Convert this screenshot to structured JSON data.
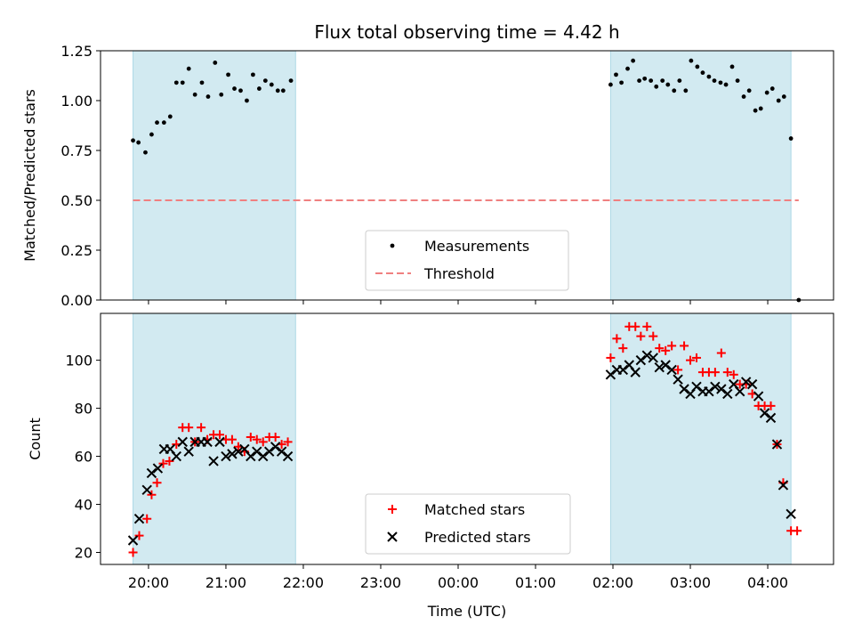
{
  "chart_data": {
    "type": "scatter",
    "title": "Flux total observing time = 4.42 h",
    "xlabel": "Time (UTC)",
    "x_unit": "hours since 00:00 UTC (previous evening negative)",
    "x_ticks": [
      -4,
      -3,
      -2,
      -1,
      0,
      1,
      2,
      3,
      4
    ],
    "x_tick_labels": [
      "20:00",
      "21:00",
      "22:00",
      "23:00",
      "00:00",
      "01:00",
      "02:00",
      "03:00",
      "04:00"
    ],
    "xlim": [
      -4.62,
      4.85
    ],
    "shaded_intervals": [
      [
        -4.2,
        -2.1
      ],
      [
        1.97,
        4.3
      ]
    ],
    "shade_color": "#add8e6",
    "panels": [
      {
        "ylabel": "Matched/Predicted stars",
        "ylim": [
          0,
          1.25
        ],
        "y_ticks": [
          0,
          0.25,
          0.5,
          0.75,
          1.0,
          1.25
        ],
        "y_tick_labels": [
          "0.00",
          "0.25",
          "0.50",
          "0.75",
          "1.00",
          "1.25"
        ],
        "legend": {
          "placement": "lower center",
          "entries": [
            "Measurements",
            "Threshold"
          ]
        },
        "threshold": {
          "name": "Threshold",
          "y": 0.5,
          "x_range": [
            -4.2,
            4.4
          ],
          "color": "#f08080",
          "style": "dashed"
        },
        "series": [
          {
            "name": "Measurements",
            "marker": "dot",
            "color": "#000000",
            "points": [
              [
                -4.2,
                0.8
              ],
              [
                -4.13,
                0.79
              ],
              [
                -4.04,
                0.74
              ],
              [
                -3.96,
                0.83
              ],
              [
                -3.89,
                0.89
              ],
              [
                -3.8,
                0.89
              ],
              [
                -3.72,
                0.92
              ],
              [
                -3.64,
                1.09
              ],
              [
                -3.56,
                1.09
              ],
              [
                -3.48,
                1.16
              ],
              [
                -3.4,
                1.03
              ],
              [
                -3.31,
                1.09
              ],
              [
                -3.23,
                1.02
              ],
              [
                -3.14,
                1.19
              ],
              [
                -3.06,
                1.03
              ],
              [
                -2.97,
                1.13
              ],
              [
                -2.89,
                1.06
              ],
              [
                -2.81,
                1.05
              ],
              [
                -2.73,
                1.0
              ],
              [
                -2.65,
                1.13
              ],
              [
                -2.57,
                1.06
              ],
              [
                -2.49,
                1.1
              ],
              [
                -2.41,
                1.08
              ],
              [
                -2.33,
                1.05
              ],
              [
                -2.26,
                1.05
              ],
              [
                -2.16,
                1.1
              ],
              [
                1.97,
                1.08
              ],
              [
                2.04,
                1.13
              ],
              [
                2.11,
                1.09
              ],
              [
                2.19,
                1.16
              ],
              [
                2.26,
                1.2
              ],
              [
                2.34,
                1.1
              ],
              [
                2.41,
                1.11
              ],
              [
                2.49,
                1.1
              ],
              [
                2.56,
                1.07
              ],
              [
                2.64,
                1.1
              ],
              [
                2.71,
                1.08
              ],
              [
                2.79,
                1.05
              ],
              [
                2.86,
                1.1
              ],
              [
                2.94,
                1.05
              ],
              [
                3.01,
                1.2
              ],
              [
                3.09,
                1.17
              ],
              [
                3.16,
                1.14
              ],
              [
                3.24,
                1.12
              ],
              [
                3.31,
                1.1
              ],
              [
                3.39,
                1.09
              ],
              [
                3.46,
                1.08
              ],
              [
                3.54,
                1.17
              ],
              [
                3.61,
                1.1
              ],
              [
                3.69,
                1.02
              ],
              [
                3.76,
                1.05
              ],
              [
                3.84,
                0.95
              ],
              [
                3.91,
                0.96
              ],
              [
                3.99,
                1.04
              ],
              [
                4.06,
                1.06
              ],
              [
                4.14,
                1.0
              ],
              [
                4.21,
                1.02
              ],
              [
                4.3,
                0.81
              ],
              [
                4.4,
                0.0
              ]
            ]
          }
        ]
      },
      {
        "ylabel": "Count",
        "ylim": [
          15,
          119.5
        ],
        "y_ticks": [
          20,
          40,
          60,
          80,
          100
        ],
        "y_tick_labels": [
          "20",
          "40",
          "60",
          "80",
          "100"
        ],
        "legend": {
          "placement": "lower center",
          "entries": [
            "Matched stars",
            "Predicted stars"
          ]
        },
        "series": [
          {
            "name": "Matched stars",
            "marker": "plus",
            "color": "#ff0000",
            "points": [
              [
                -4.2,
                20
              ],
              [
                -4.12,
                27
              ],
              [
                -4.02,
                34
              ],
              [
                -3.96,
                44
              ],
              [
                -3.89,
                49
              ],
              [
                -3.81,
                57
              ],
              [
                -3.73,
                58
              ],
              [
                -3.64,
                65
              ],
              [
                -3.56,
                72
              ],
              [
                -3.48,
                72
              ],
              [
                -3.4,
                66
              ],
              [
                -3.32,
                72
              ],
              [
                -3.24,
                67
              ],
              [
                -3.16,
                69
              ],
              [
                -3.08,
                69
              ],
              [
                -3.0,
                67
              ],
              [
                -2.92,
                67
              ],
              [
                -2.84,
                64
              ],
              [
                -2.76,
                62
              ],
              [
                -2.68,
                68
              ],
              [
                -2.6,
                67
              ],
              [
                -2.52,
                66
              ],
              [
                -2.44,
                68
              ],
              [
                -2.36,
                68
              ],
              [
                -2.28,
                65
              ],
              [
                -2.2,
                66
              ],
              [
                1.97,
                101
              ],
              [
                2.05,
                109
              ],
              [
                2.13,
                105
              ],
              [
                2.21,
                114
              ],
              [
                2.29,
                114
              ],
              [
                2.36,
                110
              ],
              [
                2.44,
                114
              ],
              [
                2.52,
                110
              ],
              [
                2.6,
                105
              ],
              [
                2.68,
                104
              ],
              [
                2.76,
                106
              ],
              [
                2.84,
                96
              ],
              [
                2.92,
                106
              ],
              [
                3.0,
                100
              ],
              [
                3.08,
                101
              ],
              [
                3.16,
                95
              ],
              [
                3.24,
                95
              ],
              [
                3.32,
                95
              ],
              [
                3.4,
                103
              ],
              [
                3.48,
                95
              ],
              [
                3.56,
                94
              ],
              [
                3.64,
                90
              ],
              [
                3.72,
                90
              ],
              [
                3.8,
                86
              ],
              [
                3.88,
                81
              ],
              [
                3.96,
                81
              ],
              [
                4.04,
                81
              ],
              [
                4.12,
                65
              ],
              [
                4.2,
                49
              ],
              [
                4.3,
                29
              ],
              [
                4.38,
                29
              ]
            ]
          },
          {
            "name": "Predicted stars",
            "marker": "x",
            "color": "#000000",
            "points": [
              [
                -4.2,
                25
              ],
              [
                -4.12,
                34
              ],
              [
                -4.02,
                46
              ],
              [
                -3.96,
                53
              ],
              [
                -3.88,
                55
              ],
              [
                -3.8,
                63
              ],
              [
                -3.72,
                63
              ],
              [
                -3.64,
                60
              ],
              [
                -3.56,
                66
              ],
              [
                -3.48,
                62
              ],
              [
                -3.4,
                66
              ],
              [
                -3.32,
                66
              ],
              [
                -3.24,
                66
              ],
              [
                -3.16,
                58
              ],
              [
                -3.08,
                66
              ],
              [
                -3.0,
                60
              ],
              [
                -2.92,
                61
              ],
              [
                -2.84,
                62
              ],
              [
                -2.76,
                63
              ],
              [
                -2.68,
                60
              ],
              [
                -2.6,
                62
              ],
              [
                -2.52,
                60
              ],
              [
                -2.44,
                62
              ],
              [
                -2.36,
                64
              ],
              [
                -2.28,
                62
              ],
              [
                -2.2,
                60
              ],
              [
                1.97,
                94
              ],
              [
                2.05,
                96
              ],
              [
                2.13,
                96
              ],
              [
                2.21,
                98
              ],
              [
                2.29,
                95
              ],
              [
                2.36,
                100
              ],
              [
                2.44,
                102
              ],
              [
                2.52,
                101
              ],
              [
                2.6,
                97
              ],
              [
                2.68,
                98
              ],
              [
                2.76,
                96
              ],
              [
                2.84,
                92
              ],
              [
                2.92,
                88
              ],
              [
                3.0,
                86
              ],
              [
                3.08,
                89
              ],
              [
                3.16,
                87
              ],
              [
                3.24,
                87
              ],
              [
                3.32,
                89
              ],
              [
                3.4,
                88
              ],
              [
                3.48,
                86
              ],
              [
                3.56,
                90
              ],
              [
                3.64,
                87
              ],
              [
                3.72,
                91
              ],
              [
                3.8,
                90
              ],
              [
                3.88,
                85
              ],
              [
                3.96,
                78
              ],
              [
                4.04,
                76
              ],
              [
                4.12,
                65
              ],
              [
                4.2,
                48
              ],
              [
                4.3,
                36
              ]
            ]
          }
        ]
      }
    ]
  }
}
